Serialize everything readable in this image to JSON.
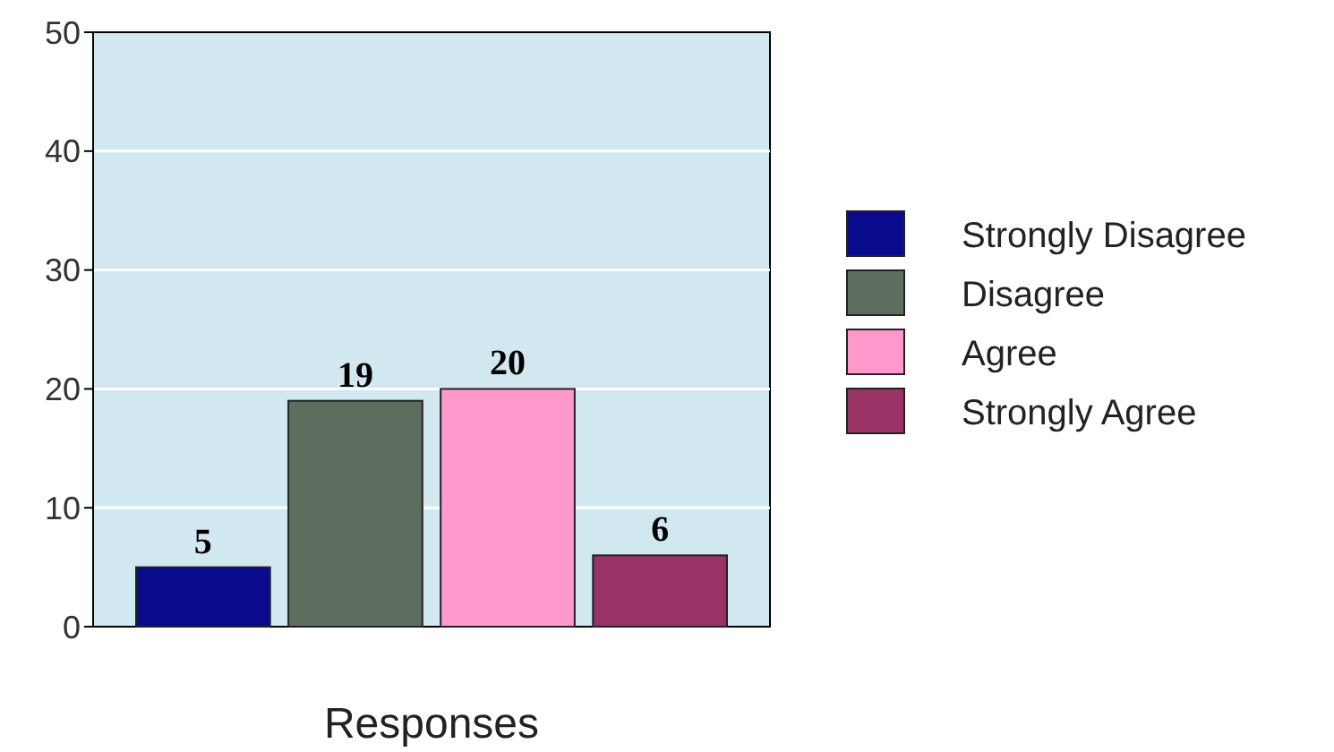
{
  "chart_data": {
    "type": "bar",
    "xlabel": "Responses",
    "categories": [
      null
    ],
    "series": [
      {
        "name": "Strongly Disagree",
        "color": "#0a0a8c",
        "values": [
          5
        ]
      },
      {
        "name": "Disagree",
        "color": "#5e6e5e",
        "values": [
          19
        ]
      },
      {
        "name": "Agree",
        "color": "#ff99cc",
        "values": [
          20
        ]
      },
      {
        "name": "Strongly Agree",
        "color": "#993366",
        "values": [
          6
        ]
      }
    ],
    "ylim": [
      0,
      50
    ],
    "yticks": [
      0,
      10,
      20,
      30,
      40,
      50
    ],
    "grid": "y",
    "legend": "right",
    "data_labels": true
  }
}
